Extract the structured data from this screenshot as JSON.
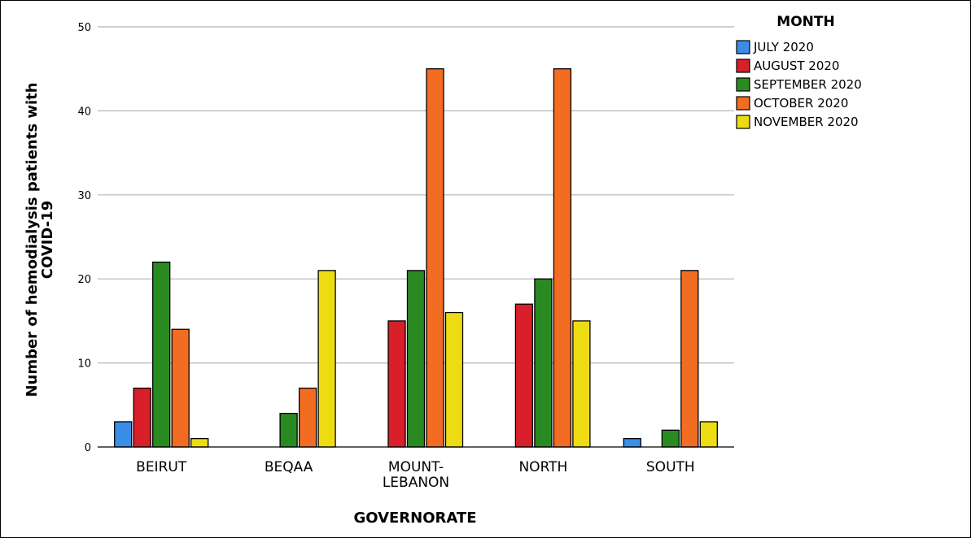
{
  "chart_data": {
    "type": "bar",
    "xlabel": "GOVERNORATE",
    "ylabel_line1": "Number of hemodialysis patients with",
    "ylabel_line2": "COVID-19",
    "ylim": [
      0,
      50
    ],
    "yticks": [
      0,
      10,
      20,
      30,
      40,
      50
    ],
    "grid": true,
    "legend_title": "MONTH",
    "legend_position": "top-right",
    "categories": [
      {
        "lines": [
          "BEIRUT"
        ]
      },
      {
        "lines": [
          "BEQAA"
        ]
      },
      {
        "lines": [
          "MOUNT-",
          "LEBANON"
        ]
      },
      {
        "lines": [
          "NORTH"
        ]
      },
      {
        "lines": [
          "SOUTH"
        ]
      }
    ],
    "series": [
      {
        "name": "JULY 2020",
        "color": "#3a8ee6",
        "values": [
          3,
          0,
          0,
          0,
          1
        ]
      },
      {
        "name": "AUGUST 2020",
        "color": "#d81f2a",
        "values": [
          7,
          0,
          15,
          17,
          0
        ]
      },
      {
        "name": "SEPTEMBER 2020",
        "color": "#2a8a22",
        "values": [
          22,
          4,
          21,
          20,
          2
        ]
      },
      {
        "name": "OCTOBER 2020",
        "color": "#f26d22",
        "values": [
          14,
          7,
          45,
          45,
          21
        ]
      },
      {
        "name": "NOVEMBER 2020",
        "color": "#eedc12",
        "values": [
          1,
          21,
          16,
          15,
          3
        ]
      }
    ]
  }
}
